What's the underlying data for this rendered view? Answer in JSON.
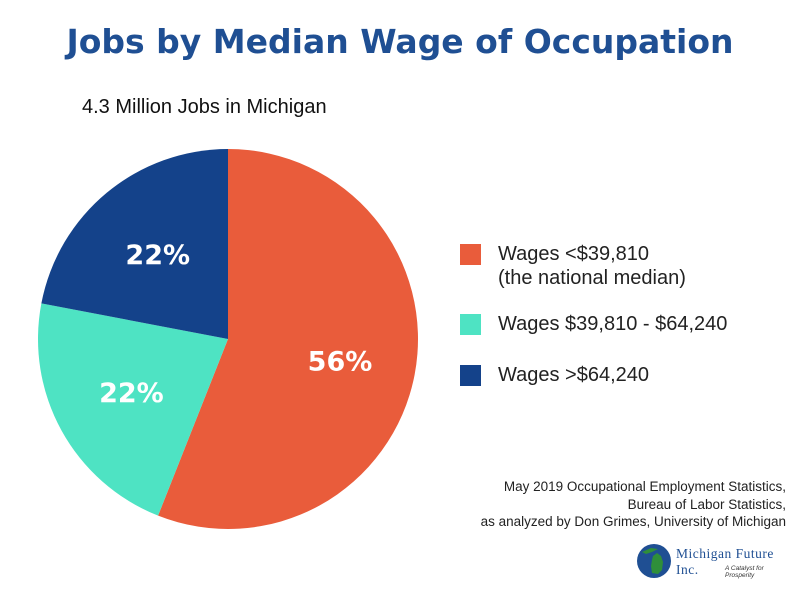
{
  "title": "Jobs by Median Wage of Occupation",
  "subtitle": "4.3 Million Jobs in Michigan",
  "colors": {
    "title": "#1f4f93",
    "low": "#e95c3b",
    "mid": "#4ee3c3",
    "high": "#14428a",
    "logo": "#1f4f93"
  },
  "chart_data": {
    "type": "pie",
    "title": "Jobs by Median Wage of Occupation",
    "subtitle": "4.3 Million Jobs in Michigan",
    "slices": [
      {
        "label": "Wages <$39,810 (the national median)",
        "value": 56,
        "display": "56%",
        "color": "#e95c3b"
      },
      {
        "label": "Wages $39,810 - $64,240",
        "value": 22,
        "display": "22%",
        "color": "#4ee3c3"
      },
      {
        "label": "Wages >$64,240",
        "value": 22,
        "display": "22%",
        "color": "#14428a"
      }
    ],
    "start": "12 o'clock",
    "direction": "clockwise",
    "legend_position": "right"
  },
  "legend": [
    {
      "lines": [
        "Wages <$39,810",
        "(the national median)"
      ],
      "color": "#e95c3b"
    },
    {
      "lines": [
        "Wages $39,810 - $64,240"
      ],
      "color": "#4ee3c3"
    },
    {
      "lines": [
        "Wages >$64,240"
      ],
      "color": "#14428a"
    }
  ],
  "source": {
    "lines": [
      "May 2019 Occupational Employment Statistics,",
      "Bureau of Labor Statistics,",
      "as analyzed by Don Grimes, University of Michigan"
    ]
  },
  "logo": {
    "name": "Michigan Future Inc.",
    "tagline": "A Catalyst for Prosperity",
    "icon": "michigan-map-icon"
  }
}
